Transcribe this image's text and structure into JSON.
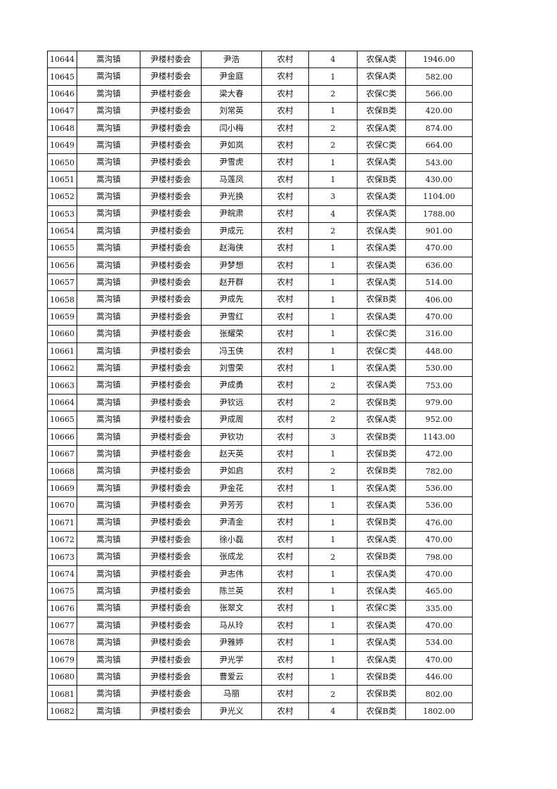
{
  "table": {
    "rows": [
      [
        "10644",
        "蒿沟镇",
        "尹楼村委会",
        "尹浩",
        "农村",
        "4",
        "农保A类",
        "1946.00"
      ],
      [
        "10645",
        "蒿沟镇",
        "尹楼村委会",
        "尹金庭",
        "农村",
        "1",
        "农保A类",
        "582.00"
      ],
      [
        "10646",
        "蒿沟镇",
        "尹楼村委会",
        "梁大春",
        "农村",
        "2",
        "农保C类",
        "566.00"
      ],
      [
        "10647",
        "蒿沟镇",
        "尹楼村委会",
        "刘常英",
        "农村",
        "1",
        "农保B类",
        "420.00"
      ],
      [
        "10648",
        "蒿沟镇",
        "尹楼村委会",
        "闫小梅",
        "农村",
        "2",
        "农保A类",
        "874.00"
      ],
      [
        "10649",
        "蒿沟镇",
        "尹楼村委会",
        "尹如岚",
        "农村",
        "2",
        "农保C类",
        "664.00"
      ],
      [
        "10650",
        "蒿沟镇",
        "尹楼村委会",
        "尹雪虎",
        "农村",
        "1",
        "农保A类",
        "543.00"
      ],
      [
        "10651",
        "蒿沟镇",
        "尹楼村委会",
        "马莲凤",
        "农村",
        "1",
        "农保B类",
        "430.00"
      ],
      [
        "10652",
        "蒿沟镇",
        "尹楼村委会",
        "尹光换",
        "农村",
        "3",
        "农保A类",
        "1104.00"
      ],
      [
        "10653",
        "蒿沟镇",
        "尹楼村委会",
        "尹皖肃",
        "农村",
        "4",
        "农保A类",
        "1788.00"
      ],
      [
        "10654",
        "蒿沟镇",
        "尹楼村委会",
        "尹成元",
        "农村",
        "2",
        "农保A类",
        "901.00"
      ],
      [
        "10655",
        "蒿沟镇",
        "尹楼村委会",
        "赵海侠",
        "农村",
        "1",
        "农保A类",
        "470.00"
      ],
      [
        "10656",
        "蒿沟镇",
        "尹楼村委会",
        "尹梦想",
        "农村",
        "1",
        "农保A类",
        "636.00"
      ],
      [
        "10657",
        "蒿沟镇",
        "尹楼村委会",
        "赵开群",
        "农村",
        "1",
        "农保A类",
        "514.00"
      ],
      [
        "10658",
        "蒿沟镇",
        "尹楼村委会",
        "尹成先",
        "农村",
        "1",
        "农保B类",
        "406.00"
      ],
      [
        "10659",
        "蒿沟镇",
        "尹楼村委会",
        "尹雪红",
        "农村",
        "1",
        "农保A类",
        "470.00"
      ],
      [
        "10660",
        "蒿沟镇",
        "尹楼村委会",
        "张耀荣",
        "农村",
        "1",
        "农保C类",
        "316.00"
      ],
      [
        "10661",
        "蒿沟镇",
        "尹楼村委会",
        "冯玉侠",
        "农村",
        "1",
        "农保C类",
        "448.00"
      ],
      [
        "10662",
        "蒿沟镇",
        "尹楼村委会",
        "刘雪荣",
        "农村",
        "1",
        "农保A类",
        "530.00"
      ],
      [
        "10663",
        "蒿沟镇",
        "尹楼村委会",
        "尹成勇",
        "农村",
        "2",
        "农保A类",
        "753.00"
      ],
      [
        "10664",
        "蒿沟镇",
        "尹楼村委会",
        "尹钦远",
        "农村",
        "2",
        "农保B类",
        "979.00"
      ],
      [
        "10665",
        "蒿沟镇",
        "尹楼村委会",
        "尹成周",
        "农村",
        "2",
        "农保A类",
        "952.00"
      ],
      [
        "10666",
        "蒿沟镇",
        "尹楼村委会",
        "尹钦功",
        "农村",
        "3",
        "农保B类",
        "1143.00"
      ],
      [
        "10667",
        "蒿沟镇",
        "尹楼村委会",
        "赵天英",
        "农村",
        "1",
        "农保B类",
        "472.00"
      ],
      [
        "10668",
        "蒿沟镇",
        "尹楼村委会",
        "尹如启",
        "农村",
        "2",
        "农保B类",
        "782.00"
      ],
      [
        "10669",
        "蒿沟镇",
        "尹楼村委会",
        "尹金花",
        "农村",
        "1",
        "农保A类",
        "536.00"
      ],
      [
        "10670",
        "蒿沟镇",
        "尹楼村委会",
        "尹芳芳",
        "农村",
        "1",
        "农保A类",
        "536.00"
      ],
      [
        "10671",
        "蒿沟镇",
        "尹楼村委会",
        "尹清金",
        "农村",
        "1",
        "农保B类",
        "476.00"
      ],
      [
        "10672",
        "蒿沟镇",
        "尹楼村委会",
        "徐小磊",
        "农村",
        "1",
        "农保A类",
        "470.00"
      ],
      [
        "10673",
        "蒿沟镇",
        "尹楼村委会",
        "张成龙",
        "农村",
        "2",
        "农保B类",
        "798.00"
      ],
      [
        "10674",
        "蒿沟镇",
        "尹楼村委会",
        "尹志伟",
        "农村",
        "1",
        "农保A类",
        "470.00"
      ],
      [
        "10675",
        "蒿沟镇",
        "尹楼村委会",
        "陈兰英",
        "农村",
        "1",
        "农保A类",
        "465.00"
      ],
      [
        "10676",
        "蒿沟镇",
        "尹楼村委会",
        "张翠文",
        "农村",
        "1",
        "农保C类",
        "335.00"
      ],
      [
        "10677",
        "蒿沟镇",
        "尹楼村委会",
        "马从玲",
        "农村",
        "1",
        "农保A类",
        "470.00"
      ],
      [
        "10678",
        "蒿沟镇",
        "尹楼村委会",
        "尹雅婷",
        "农村",
        "1",
        "农保A类",
        "534.00"
      ],
      [
        "10679",
        "蒿沟镇",
        "尹楼村委会",
        "尹光学",
        "农村",
        "1",
        "农保A类",
        "470.00"
      ],
      [
        "10680",
        "蒿沟镇",
        "尹楼村委会",
        "曹爱云",
        "农村",
        "1",
        "农保B类",
        "446.00"
      ],
      [
        "10681",
        "蒿沟镇",
        "尹楼村委会",
        "马丽",
        "农村",
        "2",
        "农保B类",
        "802.00"
      ],
      [
        "10682",
        "蒿沟镇",
        "尹楼村委会",
        "尹光义",
        "农村",
        "4",
        "农保B类",
        "1802.00"
      ]
    ]
  }
}
